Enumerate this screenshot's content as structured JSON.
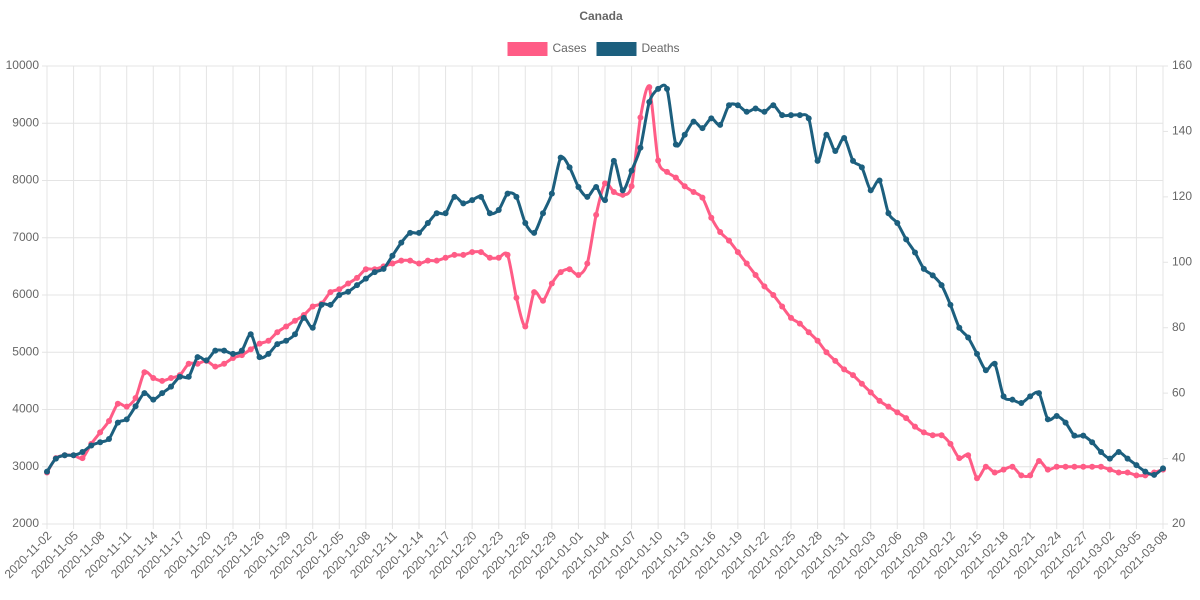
{
  "chart_data": {
    "type": "line",
    "title": "Canada",
    "categories": [
      "2020-11-02",
      null,
      null,
      "2020-11-05",
      null,
      null,
      "2020-11-08",
      null,
      null,
      "2020-11-11",
      null,
      null,
      "2020-11-14",
      null,
      null,
      "2020-11-17",
      null,
      null,
      "2020-11-20",
      null,
      null,
      "2020-11-23",
      null,
      null,
      "2020-11-26",
      null,
      null,
      "2020-11-29",
      null,
      null,
      "2020-12-02",
      null,
      null,
      "2020-12-05",
      null,
      null,
      "2020-12-08",
      null,
      null,
      "2020-12-11",
      null,
      null,
      "2020-12-14",
      null,
      null,
      "2020-12-17",
      null,
      null,
      "2020-12-20",
      null,
      null,
      "2020-12-23",
      null,
      null,
      "2020-12-26",
      null,
      null,
      "2020-12-29",
      null,
      null,
      "2021-01-01",
      null,
      null,
      "2021-01-04",
      null,
      null,
      "2021-01-07",
      null,
      null,
      "2021-01-10",
      null,
      null,
      "2021-01-13",
      null,
      null,
      "2021-01-16",
      null,
      null,
      "2021-01-19",
      null,
      null,
      "2021-01-22",
      null,
      null,
      "2021-01-25",
      null,
      null,
      "2021-01-28",
      null,
      null,
      "2021-01-31",
      null,
      null,
      "2021-02-03",
      null,
      null,
      "2021-02-06",
      null,
      null,
      "2021-02-09",
      null,
      null,
      "2021-02-12",
      null,
      null,
      "2021-02-15",
      null,
      null,
      "2021-02-18",
      null,
      null,
      "2021-02-21",
      null,
      null,
      "2021-02-24",
      null,
      null,
      "2021-02-27",
      null,
      null,
      "2021-03-02",
      null,
      null,
      "2021-03-05",
      null,
      null,
      "2021-03-08"
    ],
    "series": [
      {
        "name": "Cases",
        "color": "#ff5c86",
        "axis": "y",
        "values": [
          2900,
          3150,
          3200,
          3200,
          3150,
          3400,
          3600,
          3800,
          4100,
          4050,
          4200,
          4650,
          4550,
          4500,
          4550,
          4600,
          4800,
          4800,
          4850,
          4750,
          4800,
          4900,
          4950,
          5050,
          5150,
          5200,
          5350,
          5450,
          5550,
          5650,
          5800,
          5850,
          6050,
          6100,
          6200,
          6300,
          6450,
          6450,
          6500,
          6550,
          6600,
          6600,
          6550,
          6600,
          6600,
          6650,
          6700,
          6700,
          6750,
          6750,
          6650,
          6650,
          6700,
          5950,
          5450,
          6050,
          5900,
          6200,
          6400,
          6450,
          6350,
          6550,
          7400,
          7950,
          7800,
          7750,
          7900,
          9100,
          9630,
          8350,
          8150,
          8050,
          7900,
          7800,
          7700,
          7350,
          7100,
          6950,
          6750,
          6550,
          6350,
          6150,
          6000,
          5800,
          5600,
          5500,
          5350,
          5200,
          5000,
          4850,
          4700,
          4600,
          4450,
          4300,
          4150,
          4050,
          3950,
          3850,
          3700,
          3600,
          3550,
          3550,
          3400,
          3150,
          3200,
          2800,
          3000,
          2900,
          2950,
          3000,
          2850,
          2850,
          3100,
          2950,
          3000,
          3000,
          3000,
          3000,
          3000,
          3000,
          2950,
          2900,
          2900,
          2850,
          2850,
          2900,
          2950
        ]
      },
      {
        "name": "Deaths",
        "color": "#1c5f7e",
        "axis": "y2",
        "values": [
          36,
          40,
          41,
          41,
          42,
          44,
          45,
          46,
          51,
          52,
          56,
          60,
          58,
          60,
          62,
          65,
          65,
          71,
          70,
          73,
          73,
          72,
          73,
          78,
          71,
          72,
          75,
          76,
          78,
          83,
          80,
          87,
          87,
          90,
          91,
          93,
          95,
          97,
          98,
          102,
          106,
          109,
          109,
          112,
          115,
          115,
          120,
          118,
          119,
          120,
          115,
          116,
          121,
          120,
          112,
          109,
          115,
          121,
          132,
          129,
          123,
          120,
          123,
          119,
          131,
          122,
          128,
          135,
          149,
          153,
          153,
          136,
          139,
          143,
          141,
          144,
          142,
          148,
          148,
          146,
          147,
          146,
          148,
          145,
          145,
          145,
          144,
          131,
          139,
          134,
          138,
          131,
          129,
          122,
          125,
          115,
          112,
          107,
          103,
          98,
          96,
          93,
          87,
          80,
          77,
          72,
          67,
          69,
          59,
          58,
          57,
          59,
          60,
          52,
          53,
          51,
          47,
          47,
          45,
          42,
          40,
          42,
          40,
          38,
          36,
          35,
          37
        ]
      }
    ],
    "ylim": [
      2000,
      10000
    ],
    "yticks": [
      2000,
      3000,
      4000,
      5000,
      6000,
      7000,
      8000,
      9000,
      10000
    ],
    "y2lim": [
      20,
      160
    ],
    "y2ticks": [
      20,
      40,
      60,
      80,
      100,
      120,
      140,
      160
    ],
    "grid": true,
    "legend": "top"
  }
}
